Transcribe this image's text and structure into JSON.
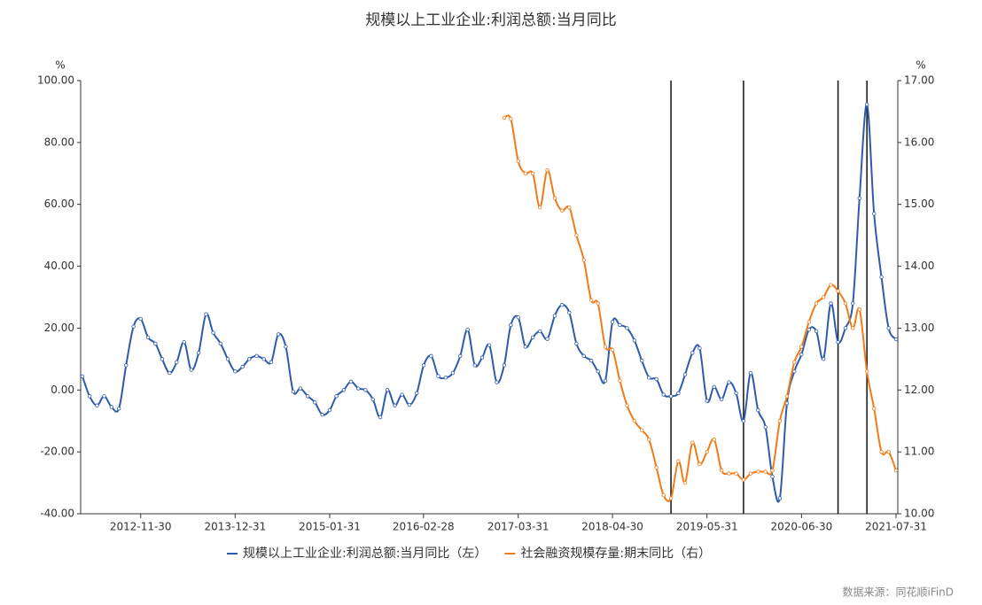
{
  "chart_data": {
    "type": "line",
    "title": "规模以上工业企业:利润总额:当月同比",
    "ylabel": "%",
    "y2label": "%",
    "source": "数据来源：同花顺iFinD",
    "x": [
      "2012-03-31",
      "2012-04-30",
      "2012-05-31",
      "2012-06-30",
      "2012-07-31",
      "2012-08-31",
      "2012-09-30",
      "2012-10-31",
      "2012-11-30",
      "2012-12-31",
      "2013-01-31",
      "2013-02-28",
      "2013-03-31",
      "2013-04-30",
      "2013-05-31",
      "2013-06-30",
      "2013-07-31",
      "2013-08-31",
      "2013-09-30",
      "2013-10-31",
      "2013-11-30",
      "2013-12-31",
      "2014-01-31",
      "2014-02-28",
      "2014-03-31",
      "2014-04-30",
      "2014-05-31",
      "2014-06-30",
      "2014-07-31",
      "2014-08-31",
      "2014-09-30",
      "2014-10-31",
      "2014-11-30",
      "2014-12-31",
      "2015-01-31",
      "2015-02-28",
      "2015-03-31",
      "2015-04-30",
      "2015-05-31",
      "2015-06-30",
      "2015-07-31",
      "2015-08-31",
      "2015-09-30",
      "2015-10-31",
      "2015-11-30",
      "2015-12-31",
      "2016-01-31",
      "2016-02-29",
      "2016-03-31",
      "2016-04-30",
      "2016-05-31",
      "2016-06-30",
      "2016-07-31",
      "2016-08-31",
      "2016-09-30",
      "2016-10-31",
      "2016-11-30",
      "2016-12-31",
      "2017-01-31",
      "2017-02-28",
      "2017-03-31",
      "2017-04-30",
      "2017-05-31",
      "2017-06-30",
      "2017-07-31",
      "2017-08-31",
      "2017-09-30",
      "2017-10-31",
      "2017-11-30",
      "2017-12-31",
      "2018-01-31",
      "2018-02-28",
      "2018-03-31",
      "2018-04-30",
      "2018-05-31",
      "2018-06-30",
      "2018-07-31",
      "2018-08-31",
      "2018-09-30",
      "2018-10-31",
      "2018-11-30",
      "2018-12-31",
      "2019-01-31",
      "2019-02-28",
      "2019-03-31",
      "2019-04-30",
      "2019-05-31",
      "2019-06-30",
      "2019-07-31",
      "2019-08-31",
      "2019-09-30",
      "2019-10-31",
      "2019-11-30",
      "2019-12-31",
      "2020-01-31",
      "2020-02-29",
      "2020-03-31",
      "2020-04-30",
      "2020-05-31",
      "2020-06-30",
      "2020-07-31",
      "2020-08-31",
      "2020-09-30",
      "2020-10-31",
      "2020-11-30",
      "2020-12-31",
      "2021-01-31",
      "2021-02-28",
      "2021-03-31",
      "2021-04-30",
      "2021-05-31",
      "2021-06-30",
      "2021-07-31"
    ],
    "series": [
      {
        "name": "规模以上工业企业:利润总额:当月同比（左）",
        "color": "#2e5caa",
        "axis": "y",
        "values": [
          4.4,
          -2,
          -5,
          -2,
          -5.5,
          -6,
          8,
          20.5,
          23,
          17,
          15,
          10,
          5.5,
          9,
          15.5,
          6.5,
          12,
          24.5,
          18.5,
          15,
          10,
          6,
          7.5,
          10,
          11,
          10,
          9,
          18,
          14,
          -0.5,
          0.5,
          -2,
          -4,
          -8,
          -6.5,
          -2,
          0,
          2.7,
          0.5,
          0,
          -3,
          -8.8,
          0,
          -5,
          -1.5,
          -4.8,
          -1,
          8,
          11,
          4.5,
          4,
          5.5,
          11,
          19.5,
          8,
          10.5,
          14.5,
          2.5,
          8,
          21,
          23.5,
          14,
          17,
          19,
          16.5,
          24,
          27.5,
          25,
          15,
          11,
          9.5,
          6,
          3,
          22,
          21,
          20,
          16,
          9.5,
          4,
          3.5,
          -1.5,
          -2,
          -1,
          5,
          12,
          13.5,
          -3.5,
          1,
          -3,
          2.5,
          -1,
          -10,
          5.5,
          -6.5,
          -12,
          -28,
          -35,
          -4.3,
          6,
          11.5,
          19.5,
          19,
          10,
          28,
          15.5,
          20,
          28,
          62,
          92.3,
          57,
          36.5,
          20,
          16.4
        ]
      },
      {
        "name": "社会融资规模存量:期末同比（右）",
        "color": "#f07b17",
        "axis": "y2",
        "values": [
          null,
          null,
          null,
          null,
          null,
          null,
          null,
          null,
          null,
          null,
          null,
          null,
          null,
          null,
          null,
          null,
          null,
          null,
          null,
          null,
          null,
          null,
          null,
          null,
          null,
          null,
          null,
          null,
          null,
          null,
          null,
          null,
          null,
          null,
          null,
          null,
          null,
          null,
          null,
          null,
          null,
          null,
          null,
          null,
          null,
          null,
          null,
          null,
          null,
          null,
          null,
          null,
          null,
          null,
          null,
          null,
          null,
          null,
          16.4,
          16.38,
          15.7,
          15.5,
          15.5,
          14.95,
          15.55,
          15.1,
          14.9,
          14.95,
          14.5,
          14.1,
          13.45,
          13.4,
          12.7,
          12.65,
          12.15,
          11.75,
          11.5,
          11.35,
          11.2,
          10.75,
          10.3,
          10.25,
          10.85,
          10.5,
          11.15,
          10.8,
          11.0,
          11.2,
          10.7,
          10.65,
          10.65,
          10.55,
          10.65,
          10.68,
          10.68,
          10.7,
          11.5,
          11.9,
          12.45,
          12.7,
          13.1,
          13.4,
          13.5,
          13.7,
          13.6,
          13.4,
          13.0,
          13.3,
          12.3,
          11.7,
          11.0,
          11.0,
          10.7
        ]
      }
    ],
    "ylim": [
      -40,
      100
    ],
    "yticks": [
      {
        "value": -40,
        "label": "-40.00"
      },
      {
        "value": -20,
        "label": "-20.00"
      },
      {
        "value": 0,
        "label": "0.00"
      },
      {
        "value": 20,
        "label": "20.00"
      },
      {
        "value": 40,
        "label": "40.00"
      },
      {
        "value": 60,
        "label": "60.00"
      },
      {
        "value": 80,
        "label": "80.00"
      },
      {
        "value": 100,
        "label": "100.00"
      }
    ],
    "y2lim": [
      10,
      17
    ],
    "y2ticks": [
      {
        "value": 10,
        "label": "10.00"
      },
      {
        "value": 11,
        "label": "11.00"
      },
      {
        "value": 12,
        "label": "12.00"
      },
      {
        "value": 13,
        "label": "13.00"
      },
      {
        "value": 14,
        "label": "14.00"
      },
      {
        "value": 15,
        "label": "15.00"
      },
      {
        "value": 16,
        "label": "16.00"
      },
      {
        "value": 17,
        "label": "17.00"
      }
    ],
    "xticks": [
      "2012-11-30",
      "2013-12-31",
      "2015-01-31",
      "2016-02-28",
      "2017-03-31",
      "2018-04-30",
      "2019-05-31",
      "2020-06-30",
      "2021-07-31"
    ],
    "vlines": [
      "2018-12-31",
      "2019-10-31",
      "2020-11-30",
      "2021-03-31"
    ],
    "grid": false
  }
}
